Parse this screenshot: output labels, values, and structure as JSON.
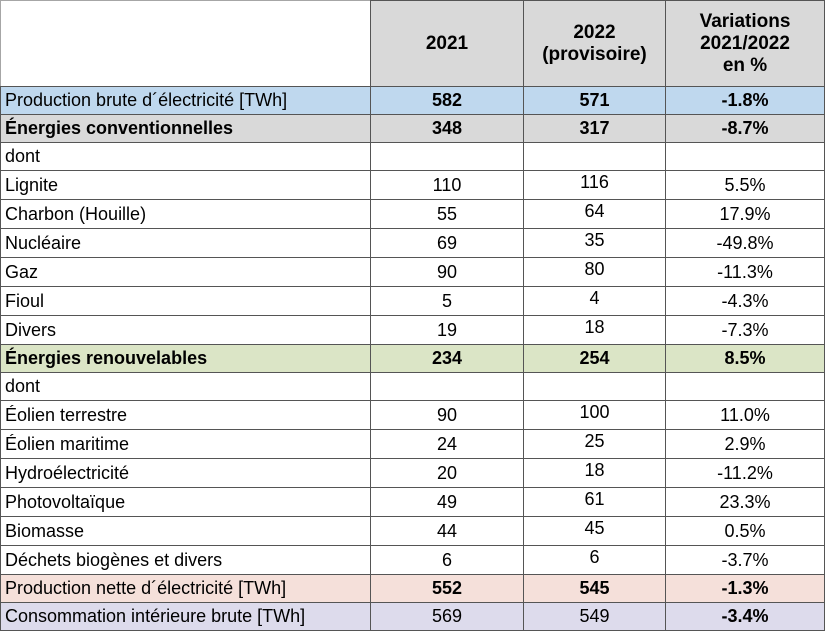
{
  "chart_data": {
    "type": "table",
    "title": "",
    "unit": "TWh",
    "columns": [
      "",
      "2021",
      "2022 (provisoire)",
      "Variations 2021/2022 en %"
    ],
    "header": {
      "corner": "",
      "col_2021": "2021",
      "col_2022": "2022\n(provisoire)",
      "col_variations": "Variations\n2021/2022\nen %"
    },
    "rows": [
      {
        "label": "Production brute d´électricité [TWh]",
        "v2021": "582",
        "v2022": "571",
        "variation": "-1.8%",
        "bg": "blue",
        "label_bold": false,
        "values_bold": true,
        "variation_bold": true
      },
      {
        "label": "Énergies conventionnelles",
        "v2021": "348",
        "v2022": "317",
        "variation": "-8.7%",
        "bg": "gray",
        "label_bold": true,
        "values_bold": true,
        "variation_bold": true
      },
      {
        "label": "dont",
        "v2021": "",
        "v2022": "",
        "variation": "",
        "bg": "none",
        "label_bold": false,
        "values_bold": false,
        "variation_bold": false
      },
      {
        "label": "Lignite",
        "v2021": "110",
        "v2022": "116",
        "variation": "5.5%",
        "bg": "none",
        "label_bold": false,
        "values_bold": false,
        "variation_bold": false
      },
      {
        "label": "Charbon (Houille)",
        "v2021": "55",
        "v2022": "64",
        "variation": "17.9%",
        "bg": "none",
        "label_bold": false,
        "values_bold": false,
        "variation_bold": false
      },
      {
        "label": "Nucléaire",
        "v2021": "69",
        "v2022": "35",
        "variation": "-49.8%",
        "bg": "none",
        "label_bold": false,
        "values_bold": false,
        "variation_bold": false
      },
      {
        "label": "Gaz",
        "v2021": "90",
        "v2022": "80",
        "variation": "-11.3%",
        "bg": "none",
        "label_bold": false,
        "values_bold": false,
        "variation_bold": false
      },
      {
        "label": "Fioul",
        "v2021": "5",
        "v2022": "4",
        "variation": "-4.3%",
        "bg": "none",
        "label_bold": false,
        "values_bold": false,
        "variation_bold": false
      },
      {
        "label": "Divers",
        "v2021": "19",
        "v2022": "18",
        "variation": "-7.3%",
        "bg": "none",
        "label_bold": false,
        "values_bold": false,
        "variation_bold": false
      },
      {
        "label": "Énergies renouvelables",
        "v2021": "234",
        "v2022": "254",
        "variation": "8.5%",
        "bg": "green",
        "label_bold": true,
        "values_bold": true,
        "variation_bold": true
      },
      {
        "label": "dont",
        "v2021": "",
        "v2022": "",
        "variation": "",
        "bg": "none",
        "label_bold": false,
        "values_bold": false,
        "variation_bold": false
      },
      {
        "label": "Éolien terrestre",
        "v2021": "90",
        "v2022": "100",
        "variation": "11.0%",
        "bg": "none",
        "label_bold": false,
        "values_bold": false,
        "variation_bold": false
      },
      {
        "label": "Éolien maritime",
        "v2021": "24",
        "v2022": "25",
        "variation": "2.9%",
        "bg": "none",
        "label_bold": false,
        "values_bold": false,
        "variation_bold": false
      },
      {
        "label": "Hydroélectricité",
        "v2021": "20",
        "v2022": "18",
        "variation": "-11.2%",
        "bg": "none",
        "label_bold": false,
        "values_bold": false,
        "variation_bold": false
      },
      {
        "label": "Photovoltaïque",
        "v2021": "49",
        "v2022": "61",
        "variation": "23.3%",
        "bg": "none",
        "label_bold": false,
        "values_bold": false,
        "variation_bold": false
      },
      {
        "label": "Biomasse",
        "v2021": "44",
        "v2022": "45",
        "variation": "0.5%",
        "bg": "none",
        "label_bold": false,
        "values_bold": false,
        "variation_bold": false
      },
      {
        "label": "Déchets biogènes et divers",
        "v2021": "6",
        "v2022": "6",
        "variation": "-3.7%",
        "bg": "none",
        "label_bold": false,
        "values_bold": false,
        "variation_bold": false
      },
      {
        "label": "Production nette d´électricité [TWh]",
        "v2021": "552",
        "v2022": "545",
        "variation": "-1.3%",
        "bg": "pink",
        "label_bold": false,
        "values_bold": true,
        "variation_bold": true
      },
      {
        "label": "Consommation intérieure brute [TWh]",
        "v2021": "569",
        "v2022": "549",
        "variation": "-3.4%",
        "bg": "lavender",
        "label_bold": false,
        "values_bold": false,
        "variation_bold": true
      }
    ],
    "colors": {
      "header_bg": "#D9D9D9",
      "row_blue": "#BFD8EE",
      "row_gray": "#D9D9D9",
      "row_green": "#DBE5C6",
      "row_pink": "#F5E0DA",
      "row_lavender": "#DDDBEC",
      "border": "#555555"
    }
  }
}
